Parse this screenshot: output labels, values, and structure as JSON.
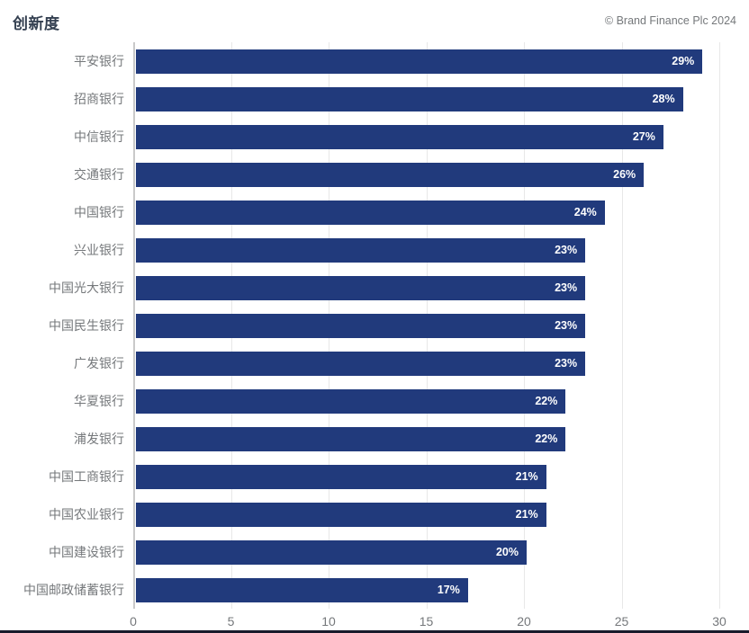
{
  "header": {
    "title": "创新度",
    "copyright": "© Brand Finance Plc 2024"
  },
  "colors": {
    "bar": "#213A7C",
    "title": "#333F50",
    "axis_label": "#75787B",
    "gridline": "#E8E8E8",
    "axis_line": "#C9C9C9",
    "value_label": "#FFFFFF",
    "bottom_band": "#181B2C"
  },
  "chart_data": {
    "type": "bar",
    "orientation": "horizontal",
    "title": "创新度",
    "categories": [
      "平安银行",
      "招商银行",
      "中信银行",
      "交通银行",
      "中国银行",
      "兴业银行",
      "中国光大银行",
      "中国民生银行",
      "广发银行",
      "华夏银行",
      "浦发银行",
      "中国工商银行",
      "中国农业银行",
      "中国建设银行",
      "中国邮政储蓄银行"
    ],
    "values": [
      29,
      28,
      27,
      26,
      24,
      23,
      23,
      23,
      23,
      22,
      22,
      21,
      21,
      20,
      17
    ],
    "value_suffix": "%",
    "value_labels": [
      "29%",
      "28%",
      "27%",
      "26%",
      "24%",
      "23%",
      "23%",
      "23%",
      "23%",
      "22%",
      "22%",
      "21%",
      "21%",
      "20%",
      "17%"
    ],
    "xlim": [
      0,
      30
    ],
    "xticks": [
      0,
      5,
      10,
      15,
      20,
      25,
      30
    ],
    "grid": "vertical",
    "legend": false
  }
}
